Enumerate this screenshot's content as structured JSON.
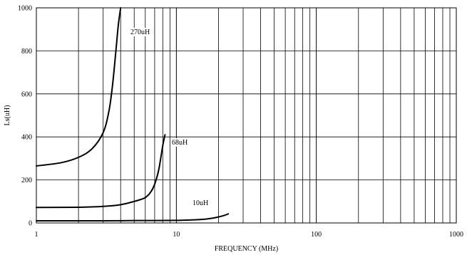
{
  "chart_data": {
    "type": "line",
    "title": "",
    "xlabel": "FREQUENCY (MHz)",
    "ylabel": "Ls(uH)",
    "x_scale": "log",
    "xlim": [
      1,
      1000
    ],
    "ylim": [
      0,
      1000
    ],
    "x_ticks": [
      "1",
      "10",
      "100",
      "1000"
    ],
    "y_ticks": [
      "0",
      "200",
      "400",
      "600",
      "800",
      "1000"
    ],
    "grid": true,
    "series": [
      {
        "name": "270uH",
        "x": [
          1,
          1.5,
          2,
          2.5,
          3,
          3.3,
          3.5,
          3.7,
          3.85,
          4.0
        ],
        "y": [
          265,
          280,
          305,
          345,
          420,
          520,
          640,
          800,
          920,
          1000
        ]
      },
      {
        "name": "68uH",
        "x": [
          1,
          2,
          3,
          4,
          5,
          5.5,
          6,
          6.5,
          7,
          7.5,
          8,
          8.3
        ],
        "y": [
          72,
          73,
          77,
          85,
          100,
          108,
          118,
          140,
          180,
          250,
          360,
          410
        ]
      },
      {
        "name": "10uH",
        "x": [
          1,
          3,
          5,
          10,
          15,
          18,
          20,
          22,
          23.5
        ],
        "y": [
          10,
          10,
          11,
          12,
          16,
          22,
          28,
          35,
          42
        ]
      }
    ]
  }
}
